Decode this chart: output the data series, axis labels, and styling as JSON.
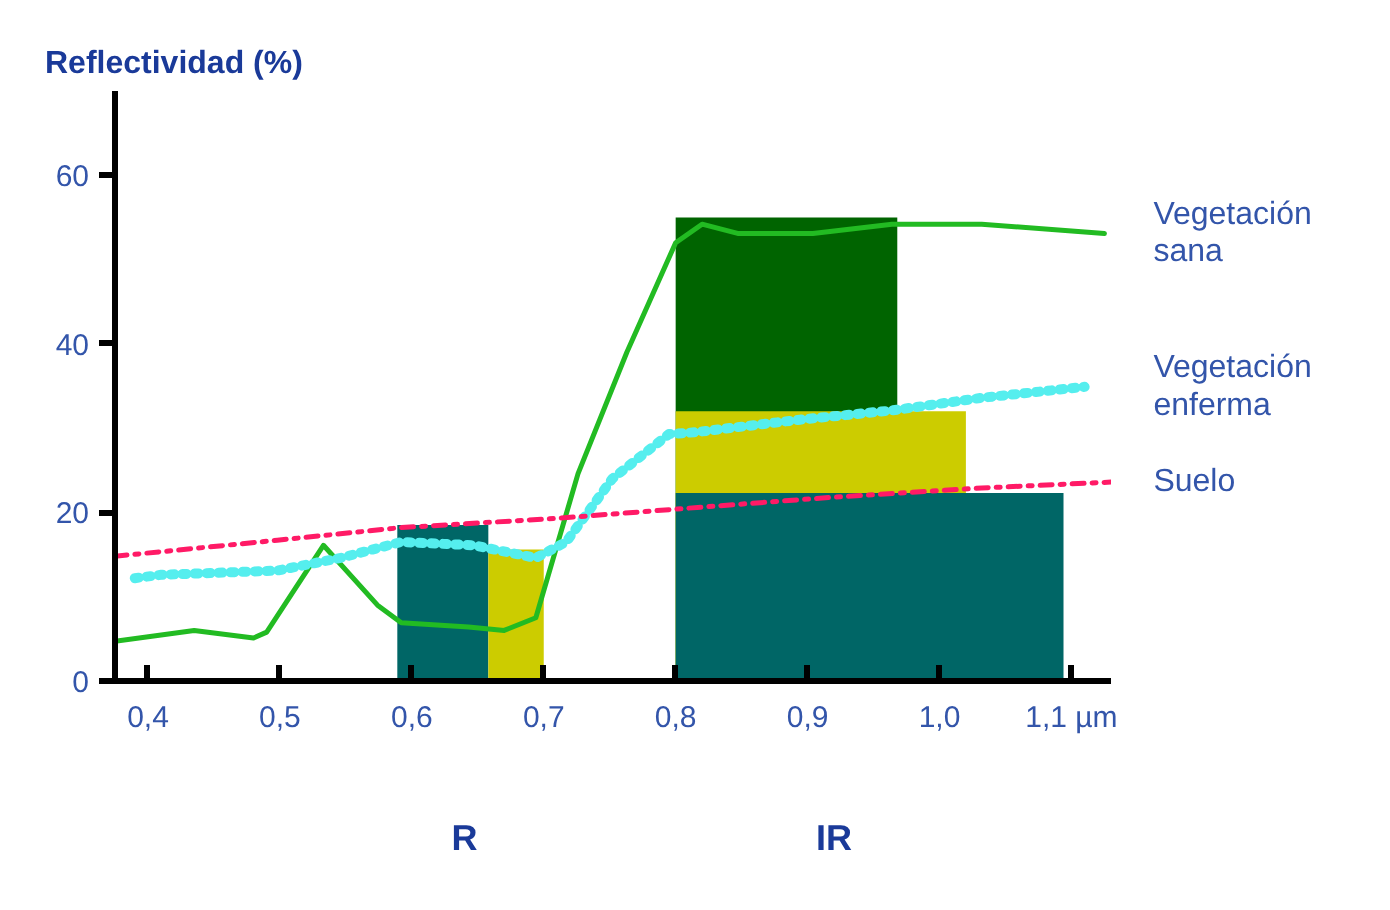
{
  "chart_data": {
    "type": "line",
    "ylabel": "Reflectividad (%)",
    "xlim": [
      0.375,
      1.13
    ],
    "ylim": [
      0,
      70
    ],
    "xticks": [
      {
        "value": 0.4,
        "label": "0,4"
      },
      {
        "value": 0.5,
        "label": "0,5"
      },
      {
        "value": 0.6,
        "label": "0,6"
      },
      {
        "value": 0.7,
        "label": "0,7"
      },
      {
        "value": 0.8,
        "label": "0,8"
      },
      {
        "value": 0.9,
        "label": "0,9"
      },
      {
        "value": 1.0,
        "label": "1,0"
      },
      {
        "value": 1.1,
        "label": "1,1 µm"
      }
    ],
    "yticks": [
      0,
      20,
      40,
      60
    ],
    "grid": false,
    "series": [
      {
        "type": "area",
        "color": "#006666",
        "x": [
          0.589,
          0.658
        ],
        "values": [
          18.5,
          18.5
        ]
      },
      {
        "type": "area",
        "color": "#cccc00",
        "x": [
          0.658,
          0.7
        ],
        "values": [
          15.6,
          15.6
        ]
      },
      {
        "type": "area",
        "color": "#006400",
        "x": [
          0.8,
          0.968
        ],
        "values": [
          55,
          55
        ]
      },
      {
        "type": "area",
        "color": "#cccc00",
        "x": [
          0.8,
          1.02
        ],
        "values": [
          32,
          32
        ]
      },
      {
        "type": "area",
        "color": "#006666",
        "x": [
          0.8,
          1.094
        ],
        "values": [
          22.3,
          22.3
        ]
      },
      {
        "name": "Vegetación sana",
        "color": "#22bb22",
        "line_style": "solid",
        "x": [
          0.375,
          0.435,
          0.48,
          0.49,
          0.533,
          0.574,
          0.592,
          0.643,
          0.67,
          0.694,
          0.726,
          0.763,
          0.8,
          0.82,
          0.847,
          0.904,
          0.964,
          1.032,
          1.125
        ],
        "values": [
          4.7,
          6.0,
          5.1,
          5.8,
          16.1,
          9.0,
          6.9,
          6.4,
          6.0,
          7.5,
          24.6,
          39,
          52,
          54.2,
          53.1,
          53.1,
          54.2,
          54.2,
          53.1
        ]
      },
      {
        "name": "Vegetación enferma",
        "color": "#55eeee",
        "line_style": "dotted",
        "x": [
          0.39,
          0.41,
          0.498,
          0.546,
          0.592,
          0.647,
          0.694,
          0.717,
          0.752,
          0.795,
          0.814,
          0.894,
          0.964,
          1.032,
          1.11
        ],
        "values": [
          12.2,
          12.6,
          13.1,
          14.6,
          16.5,
          16.1,
          14.6,
          16.5,
          24,
          29.3,
          29.5,
          31,
          32.1,
          33.6,
          34.9
        ]
      },
      {
        "name": "Suelo",
        "color": "#ff1a66",
        "line_style": "dashdot",
        "x": [
          0.375,
          0.498,
          0.592,
          0.71,
          0.834,
          0.919,
          1.032,
          1.13
        ],
        "values": [
          14.8,
          16.7,
          18.2,
          19.3,
          20.8,
          21.8,
          22.9,
          23.6
        ]
      }
    ],
    "annotations": [
      "R",
      "IR"
    ]
  }
}
